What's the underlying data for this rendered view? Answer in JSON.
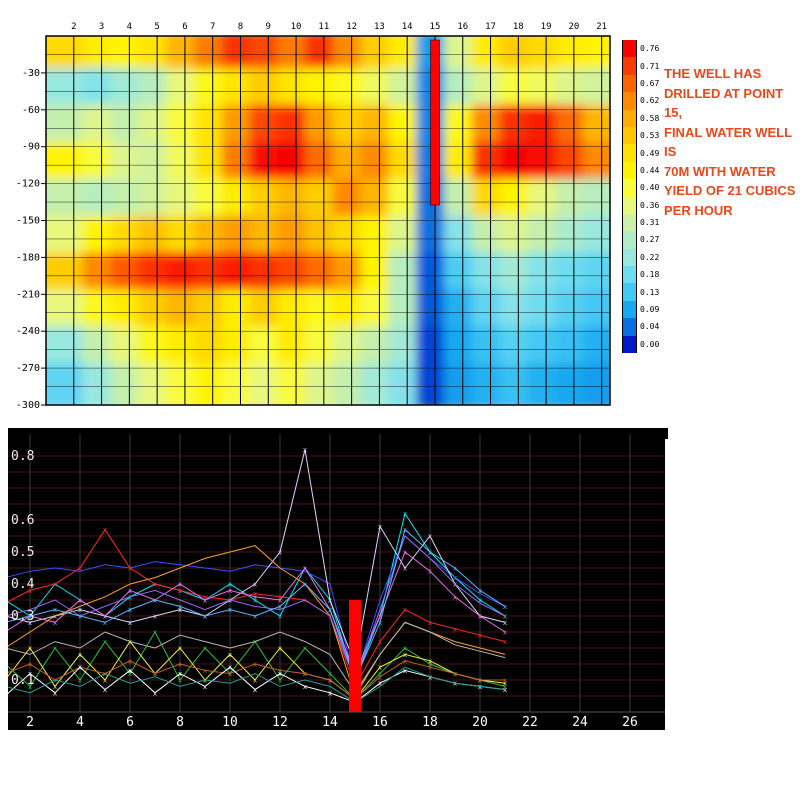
{
  "annotation": {
    "text": "THE WELL HAS\nDRILLED AT POINT 15,\nFINAL WATER WELL IS\n70M WITH WATER\nYIELD OF 21 CUBICS\nPER HOUR",
    "color": "#E8481A"
  },
  "chart_data": [
    {
      "type": "heatmap",
      "name": "resistivity-cross-section",
      "title": "",
      "x_ticks": [
        2,
        3,
        4,
        5,
        6,
        7,
        8,
        9,
        10,
        11,
        12,
        13,
        14,
        15,
        16,
        17,
        18,
        19,
        20,
        21
      ],
      "y_ticks": [
        -30,
        -60,
        -90,
        -120,
        -150,
        -180,
        -210,
        -240,
        -270,
        -300
      ],
      "station_range": [
        1,
        21.3
      ],
      "depth_range": [
        0,
        -300
      ],
      "grid": {
        "v_step": 1,
        "h_step_m": 15,
        "color": "#000000"
      },
      "legend": {
        "labels": [
          "0.76",
          "0.71",
          "0.67",
          "0.62",
          "0.58",
          "0.53",
          "0.49",
          "0.44",
          "0.40",
          "0.36",
          "0.31",
          "0.27",
          "0.22",
          "0.18",
          "0.13",
          "0.09",
          "0.04",
          "0.00"
        ],
        "colors": [
          "#F80400",
          "#FA3C00",
          "#FC6400",
          "#FD8A00",
          "#FEAC00",
          "#FEC600",
          "#FFE000",
          "#FFF400",
          "#F8FC3C",
          "#E8F87C",
          "#CCF0A4",
          "#B0ECC8",
          "#98E8E0",
          "#70DCF0",
          "#44C8F4",
          "#18A8F0",
          "#0870E0",
          "#0018C8"
        ]
      },
      "well_marker": {
        "station": 15,
        "color": "#FF0000"
      },
      "values": [
        [
          0.5,
          0.46,
          0.44,
          0.48,
          0.56,
          0.64,
          0.72,
          0.7,
          0.64,
          0.72,
          0.62,
          0.52,
          0.46,
          0.08,
          0.34,
          0.46,
          0.52,
          0.5,
          0.46,
          0.44
        ],
        [
          0.22,
          0.2,
          0.24,
          0.28,
          0.36,
          0.42,
          0.48,
          0.52,
          0.48,
          0.44,
          0.42,
          0.38,
          0.32,
          0.06,
          0.28,
          0.34,
          0.4,
          0.38,
          0.34,
          0.32
        ],
        [
          0.3,
          0.34,
          0.3,
          0.34,
          0.4,
          0.48,
          0.6,
          0.7,
          0.72,
          0.6,
          0.52,
          0.56,
          0.44,
          0.06,
          0.42,
          0.62,
          0.72,
          0.74,
          0.66,
          0.56
        ],
        [
          0.44,
          0.4,
          0.34,
          0.32,
          0.38,
          0.48,
          0.64,
          0.75,
          0.76,
          0.66,
          0.58,
          0.62,
          0.5,
          0.05,
          0.46,
          0.72,
          0.76,
          0.75,
          0.7,
          0.62
        ],
        [
          0.3,
          0.28,
          0.3,
          0.32,
          0.36,
          0.4,
          0.46,
          0.52,
          0.56,
          0.52,
          0.62,
          0.56,
          0.4,
          0.04,
          0.3,
          0.5,
          0.44,
          0.36,
          0.3,
          0.28
        ],
        [
          0.36,
          0.44,
          0.5,
          0.54,
          0.5,
          0.56,
          0.6,
          0.56,
          0.6,
          0.54,
          0.5,
          0.44,
          0.34,
          0.04,
          0.2,
          0.3,
          0.34,
          0.3,
          0.26,
          0.22
        ],
        [
          0.52,
          0.62,
          0.68,
          0.72,
          0.74,
          0.72,
          0.74,
          0.72,
          0.7,
          0.66,
          0.6,
          0.44,
          0.28,
          0.03,
          0.14,
          0.2,
          0.24,
          0.2,
          0.18,
          0.16
        ],
        [
          0.36,
          0.42,
          0.46,
          0.52,
          0.56,
          0.52,
          0.46,
          0.52,
          0.46,
          0.42,
          0.46,
          0.4,
          0.28,
          0.03,
          0.1,
          0.16,
          0.2,
          0.18,
          0.15,
          0.13
        ],
        [
          0.22,
          0.3,
          0.36,
          0.42,
          0.46,
          0.5,
          0.46,
          0.4,
          0.46,
          0.4,
          0.34,
          0.3,
          0.24,
          0.02,
          0.09,
          0.12,
          0.15,
          0.13,
          0.12,
          0.1
        ],
        [
          0.16,
          0.22,
          0.3,
          0.36,
          0.4,
          0.44,
          0.4,
          0.36,
          0.4,
          0.34,
          0.3,
          0.24,
          0.2,
          0.02,
          0.08,
          0.1,
          0.12,
          0.1,
          0.09,
          0.08
        ]
      ]
    },
    {
      "type": "line",
      "name": "sounding-curves",
      "title": "",
      "background": "#000000",
      "grid": {
        "h_color": "#4A1414",
        "v_color": "#3A3A3A",
        "h_step": 0.05
      },
      "x_ticks": [
        2,
        4,
        6,
        8,
        10,
        12,
        14,
        16,
        18,
        20,
        22,
        24,
        26
      ],
      "y_tick_labels": [
        "0.8",
        "0.6",
        "0.5",
        "0.4",
        "0.3",
        "0.1"
      ],
      "x_range": [
        1,
        27
      ],
      "y_range": [
        0,
        0.85
      ],
      "x_start": 1,
      "red_bar": {
        "x": 15,
        "top": 0.35,
        "color": "#FF0000"
      },
      "series": [
        {
          "name": "s1",
          "color": "#00E8F0",
          "marker": true,
          "values": [
            0.35,
            0.3,
            0.4,
            0.35,
            0.3,
            0.36,
            0.4,
            0.38,
            0.35,
            0.4,
            0.35,
            0.3,
            0.45,
            0.35,
            0.1,
            0.3,
            0.62,
            0.5,
            0.42,
            0.35,
            0.3
          ]
        },
        {
          "name": "s2",
          "color": "#3C50FF",
          "marker": false,
          "values": [
            0.42,
            0.44,
            0.45,
            0.44,
            0.46,
            0.45,
            0.47,
            0.46,
            0.45,
            0.44,
            0.46,
            0.45,
            0.44,
            0.4,
            0.1,
            0.35,
            0.55,
            0.48,
            0.42,
            0.37,
            0.33
          ]
        },
        {
          "name": "s3",
          "color": "#FF2828",
          "marker": true,
          "values": [
            0.34,
            0.38,
            0.4,
            0.45,
            0.57,
            0.45,
            0.4,
            0.38,
            0.36,
            0.35,
            0.37,
            0.36,
            0.35,
            0.3,
            0.08,
            0.22,
            0.32,
            0.28,
            0.26,
            0.24,
            0.22
          ]
        },
        {
          "name": "s4",
          "color": "#D8D8FF",
          "marker": true,
          "values": [
            0.3,
            0.28,
            0.3,
            0.32,
            0.3,
            0.28,
            0.3,
            0.32,
            0.3,
            0.35,
            0.4,
            0.5,
            0.82,
            0.35,
            0.15,
            0.58,
            0.45,
            0.55,
            0.4,
            0.3,
            0.28
          ]
        },
        {
          "name": "s5",
          "color": "#F070F0",
          "marker": true,
          "values": [
            0.25,
            0.3,
            0.28,
            0.35,
            0.3,
            0.38,
            0.35,
            0.4,
            0.35,
            0.38,
            0.36,
            0.35,
            0.45,
            0.32,
            0.12,
            0.3,
            0.5,
            0.44,
            0.36,
            0.3,
            0.25
          ]
        },
        {
          "name": "s6",
          "color": "#FFA028",
          "marker": false,
          "values": [
            0.2,
            0.25,
            0.3,
            0.33,
            0.36,
            0.4,
            0.42,
            0.45,
            0.48,
            0.5,
            0.52,
            0.45,
            0.4,
            0.3,
            0.05,
            0.18,
            0.28,
            0.25,
            0.22,
            0.2,
            0.18
          ]
        },
        {
          "name": "s7",
          "color": "#28C040",
          "marker": true,
          "values": [
            0.15,
            0.08,
            0.2,
            0.1,
            0.22,
            0.12,
            0.25,
            0.1,
            0.2,
            0.12,
            0.22,
            0.1,
            0.2,
            0.12,
            0.04,
            0.12,
            0.2,
            0.15,
            0.12,
            0.1,
            0.08
          ]
        },
        {
          "name": "s8",
          "color": "#F0F040",
          "marker": true,
          "values": [
            0.1,
            0.2,
            0.08,
            0.18,
            0.1,
            0.22,
            0.12,
            0.2,
            0.1,
            0.18,
            0.1,
            0.2,
            0.12,
            0.1,
            0.04,
            0.14,
            0.18,
            0.16,
            0.12,
            0.1,
            0.09
          ]
        },
        {
          "name": "s9",
          "color": "#9868FF",
          "marker": false,
          "values": [
            0.3,
            0.32,
            0.35,
            0.3,
            0.33,
            0.36,
            0.38,
            0.35,
            0.32,
            0.35,
            0.33,
            0.32,
            0.35,
            0.3,
            0.1,
            0.32,
            0.55,
            0.48,
            0.4,
            0.34,
            0.3
          ]
        },
        {
          "name": "s10",
          "color": "#58B8FF",
          "marker": true,
          "values": [
            0.28,
            0.3,
            0.32,
            0.3,
            0.28,
            0.32,
            0.35,
            0.33,
            0.3,
            0.32,
            0.3,
            0.33,
            0.4,
            0.32,
            0.1,
            0.28,
            0.57,
            0.5,
            0.45,
            0.38,
            0.33
          ]
        },
        {
          "name": "s11",
          "color": "#B8B8B8",
          "marker": false,
          "values": [
            0.2,
            0.18,
            0.22,
            0.2,
            0.25,
            0.22,
            0.2,
            0.24,
            0.22,
            0.2,
            0.22,
            0.25,
            0.22,
            0.18,
            0.06,
            0.18,
            0.28,
            0.25,
            0.21,
            0.19,
            0.17
          ]
        },
        {
          "name": "s12",
          "color": "#C06030",
          "marker": true,
          "values": [
            0.12,
            0.15,
            0.1,
            0.14,
            0.12,
            0.16,
            0.12,
            0.15,
            0.13,
            0.12,
            0.15,
            0.13,
            0.12,
            0.1,
            0.04,
            0.11,
            0.16,
            0.14,
            0.12,
            0.1,
            0.1
          ]
        },
        {
          "name": "s13",
          "color": "#FFFFFF",
          "marker": true,
          "values": [
            0.05,
            0.12,
            0.06,
            0.14,
            0.07,
            0.13,
            0.06,
            0.12,
            0.08,
            0.14,
            0.07,
            0.12,
            0.08,
            0.06,
            0.03,
            0.09,
            0.13,
            0.11,
            0.09,
            0.08,
            0.07
          ]
        },
        {
          "name": "s14",
          "color": "#20A090",
          "marker": false,
          "values": [
            0.08,
            0.06,
            0.1,
            0.08,
            0.12,
            0.09,
            0.11,
            0.08,
            0.1,
            0.09,
            0.12,
            0.08,
            0.1,
            0.08,
            0.03,
            0.08,
            0.14,
            0.11,
            0.09,
            0.08,
            0.07
          ]
        }
      ]
    }
  ]
}
